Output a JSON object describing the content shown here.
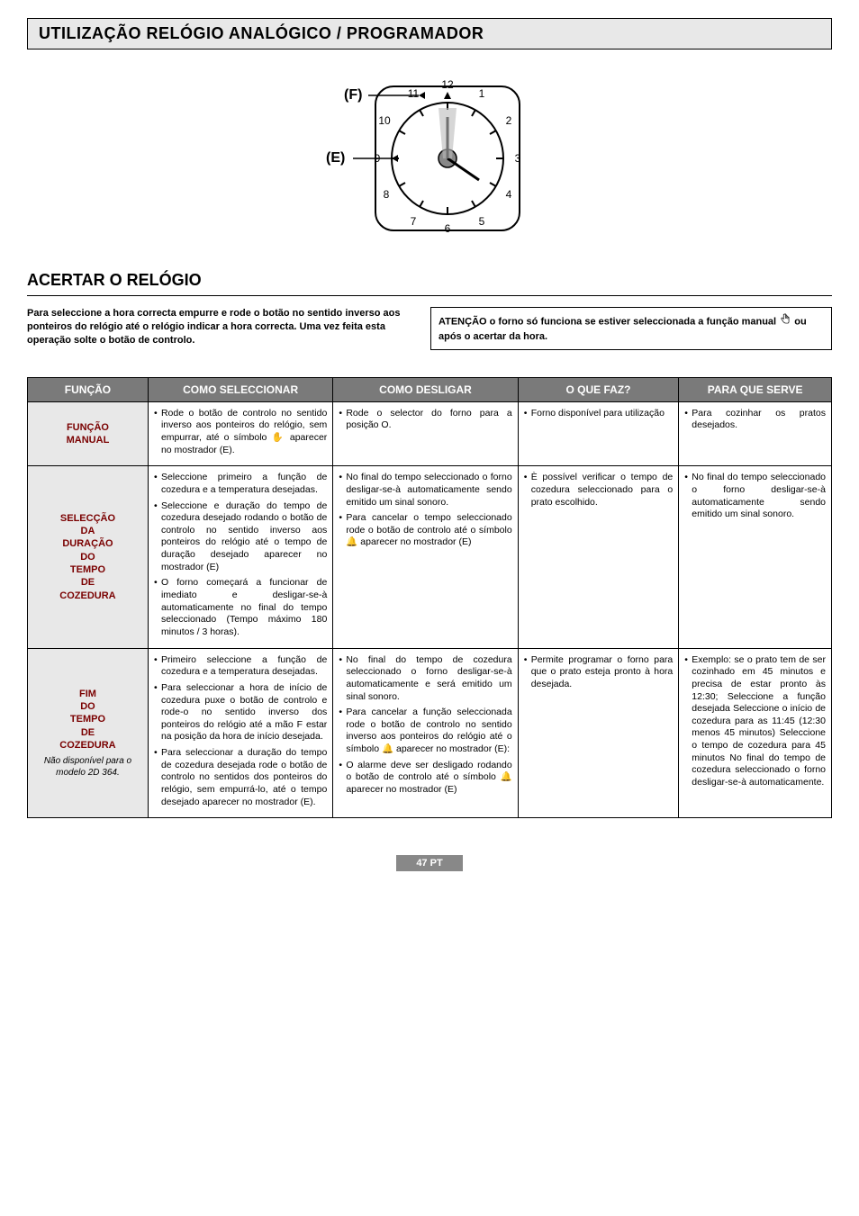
{
  "header": {
    "title": "UTILIZAÇÃO RELÓGIO ANALÓGICO / PROGRAMADOR",
    "subtitle": "ACERTAR O RELÓGIO"
  },
  "clock": {
    "label_f": "(F)",
    "label_e": "(E)",
    "numbers": [
      "12",
      "1",
      "2",
      "3",
      "4",
      "5",
      "6",
      "7",
      "8",
      "9",
      "10",
      "11"
    ]
  },
  "instructions": {
    "left": "Para seleccione a hora correcta empurre e rode o botão no sentido inverso aos ponteiros do relógio até o relógio indicar a hora correcta. Uma vez feita esta operação solte o botão de controlo.",
    "right_before": "ATENÇÃO o forno só funciona se estiver seleccionada a função manual ",
    "right_after": " ou após o acertar da hora."
  },
  "table": {
    "headers": [
      "FUNÇÃO",
      "COMO SELECCIONAR",
      "COMO DESLIGAR",
      "O QUE FAZ?",
      "PARA QUE SERVE"
    ],
    "col_widths": [
      "15%",
      "23%",
      "23%",
      "20%",
      "19%"
    ],
    "rows": [
      {
        "head": "FUNÇÃO MANUAL",
        "sub": "",
        "cells": [
          [
            "Rode o botão de controlo no sentido inverso aos ponteiros do relógio, sem empurrar, até o símbolo ✋ aparecer no mostrador (E)."
          ],
          [
            "Rode o selector do forno para a posição O."
          ],
          [
            "Forno disponível para utilização"
          ],
          [
            "Para cozinhar os pratos desejados."
          ]
        ]
      },
      {
        "head": "SELECÇÃO DA DURAÇÃO DO TEMPO DE COZEDURA",
        "sub": "",
        "cells": [
          [
            "Seleccione primeiro a função de cozedura e a temperatura desejadas.",
            "Seleccione e duração do tempo de cozedura desejado rodando o botão de controlo no sentido inverso aos ponteiros do relógio até o tempo de duração desejado aparecer no mostrador (E)",
            "O forno começará a funcionar de imediato e desligar-se-à automaticamente no final do tempo seleccionado (Tempo máximo 180 minutos / 3 horas)."
          ],
          [
            "No final do tempo seleccionado o forno desligar-se-à automaticamente sendo emitido um sinal sonoro.",
            "Para cancelar o tempo seleccionado rode o botão de controlo até o símbolo 🔔 aparecer no mostrador (E)"
          ],
          [
            "È possível verificar o tempo de cozedura seleccionado para o prato escolhido."
          ],
          [
            "No final do tempo seleccionado o forno desligar-se-à automaticamente sendo emitido um sinal sonoro."
          ]
        ]
      },
      {
        "head": "FIM DO TEMPO DE COZEDURA",
        "sub": "Não disponível para o modelo 2D 364.",
        "cells": [
          [
            "Primeiro seleccione a função de cozedura e a temperatura desejadas.",
            "Para seleccionar a hora de início de cozedura puxe o botão de controlo e rode-o no sentido inverso dos ponteiros do relógio até a mão F estar na posição da hora de início desejada.",
            "Para seleccionar a duração do tempo de cozedura desejada rode o botão de controlo no sentidos dos ponteiros do relógio, sem empurrá-lo, até o tempo desejado aparecer no mostrador (E)."
          ],
          [
            "No final do tempo de cozedura seleccionado o forno desligar-se-à automaticamente e será emitido um sinal sonoro.",
            "Para cancelar a função seleccionada rode o botão de controlo no sentido inverso aos ponteiros do relógio até o símbolo 🔔 aparecer no mostrador (E):",
            "O alarme deve ser desligado rodando o botão de controlo até o símbolo 🔔 aparecer no mostrador (E)"
          ],
          [
            "Permite programar o forno para que o prato esteja pronto à hora desejada."
          ],
          [
            "Exemplo: se o prato tem de ser cozinhado em 45 minutos e precisa de estar pronto às 12:30; Seleccione a função desejada Seleccione o início de cozedura para as 11:45 (12:30 menos 45 minutos) Seleccione o tempo de cozedura para 45 minutos No final do tempo de cozedura seleccionado o forno desligar-se-à automaticamente."
          ]
        ]
      }
    ]
  },
  "footer": "47 PT"
}
